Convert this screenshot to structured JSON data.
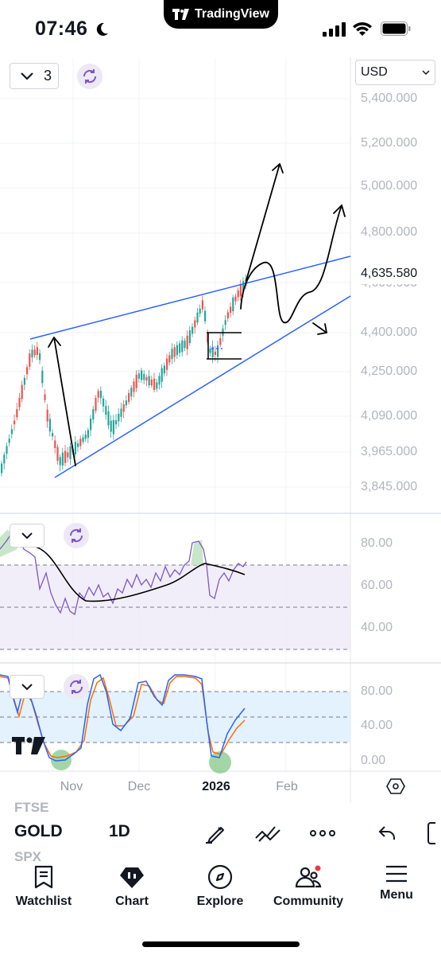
{
  "status_bar": {
    "time": "07:46"
  },
  "app": {
    "brand": "TradingView"
  },
  "chart": {
    "interval_count": "3",
    "currency": "USD",
    "current_price": "4,635.580",
    "price_axis": [
      "5,400.000",
      "5,200.000",
      "5,000.000",
      "4,800.000",
      "4,600.000",
      "4,400.000",
      "4,250.000",
      "4,090.000",
      "3,965.000",
      "3,845.000"
    ],
    "rsi_axis": [
      "80.00",
      "60.00",
      "40.00"
    ],
    "stoch_axis": [
      "80.00",
      "40.00",
      "0.00"
    ],
    "time_axis": [
      "Nov",
      "Dec",
      "2026",
      "Feb"
    ],
    "colors": {
      "up": "#26a69a",
      "down": "#ef5350",
      "trendline": "#2962ff",
      "rsi": "#7e57c2",
      "stoch_k": "#2962ff",
      "stoch_d": "#ff6d00"
    }
  },
  "toolbar": {
    "symbol": "GOLD",
    "symbol_prev": "FTSE",
    "symbol_next": "SPX",
    "timeframe": "1D",
    "icons": [
      "draw-icon",
      "indicators-icon",
      "more-icon",
      "undo-icon"
    ]
  },
  "nav": {
    "items": [
      {
        "label": "Watchlist",
        "icon": "watchlist-icon"
      },
      {
        "label": "Chart",
        "icon": "chart-icon"
      },
      {
        "label": "Explore",
        "icon": "explore-icon"
      },
      {
        "label": "Community",
        "icon": "community-icon"
      },
      {
        "label": "Menu",
        "icon": "menu-icon"
      }
    ]
  }
}
